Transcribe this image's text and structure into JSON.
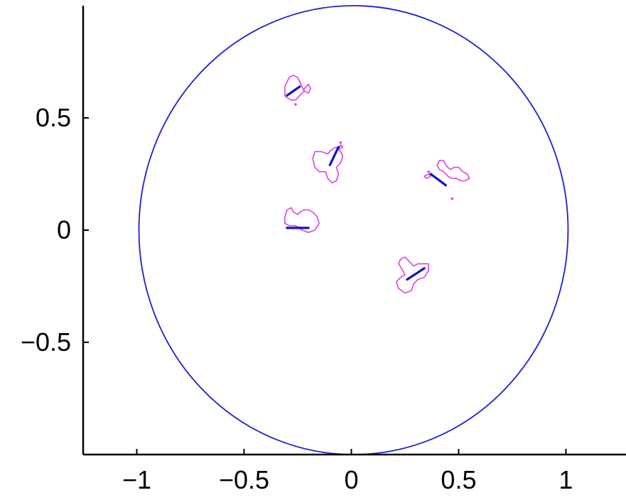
{
  "chart_data": {
    "type": "scatter",
    "title": "",
    "xlabel": "",
    "ylabel": "",
    "xlim": [
      -1.25,
      1.28
    ],
    "ylim": [
      -1.0,
      1.0
    ],
    "xticks": [
      -1,
      -0.5,
      0,
      0.5,
      1
    ],
    "xtick_labels": [
      "−1",
      "−0.5",
      "0",
      "0.5",
      "1"
    ],
    "yticks": [
      -0.5,
      0,
      0.5
    ],
    "ytick_labels": [
      "−0.5",
      "0",
      "0.5"
    ],
    "grid": false,
    "colors": {
      "circle": "#1f1fd0",
      "contour": "#e040e0",
      "segment": "#1010d0",
      "axis": "#000000"
    },
    "unit_circle": {
      "center": [
        0.01,
        0.0
      ],
      "radius": 1.0
    },
    "clusters": [
      {
        "name": "",
        "contour": [
          [
            -0.31,
            0.6
          ],
          [
            -0.31,
            0.64
          ],
          [
            -0.29,
            0.68
          ],
          [
            -0.27,
            0.69
          ],
          [
            -0.25,
            0.68
          ],
          [
            -0.24,
            0.66
          ],
          [
            -0.23,
            0.64
          ],
          [
            -0.22,
            0.62
          ],
          [
            -0.24,
            0.6
          ],
          [
            -0.26,
            0.58
          ],
          [
            -0.28,
            0.58
          ],
          [
            -0.3,
            0.59
          ],
          [
            -0.31,
            0.6
          ]
        ],
        "contour2": [
          [
            -0.22,
            0.63
          ],
          [
            -0.2,
            0.65
          ],
          [
            -0.19,
            0.63
          ],
          [
            -0.2,
            0.61
          ],
          [
            -0.22,
            0.62
          ],
          [
            -0.22,
            0.63
          ]
        ],
        "segment": [
          [
            -0.3,
            0.6
          ],
          [
            -0.24,
            0.64
          ]
        ],
        "dots": [
          [
            -0.26,
            0.56
          ]
        ]
      },
      {
        "name": "",
        "contour": [
          [
            -0.18,
            0.32
          ],
          [
            -0.17,
            0.35
          ],
          [
            -0.14,
            0.35
          ],
          [
            -0.11,
            0.34
          ],
          [
            -0.09,
            0.36
          ],
          [
            -0.07,
            0.37
          ],
          [
            -0.05,
            0.35
          ],
          [
            -0.04,
            0.33
          ],
          [
            -0.05,
            0.3
          ],
          [
            -0.07,
            0.28
          ],
          [
            -0.06,
            0.25
          ],
          [
            -0.07,
            0.22
          ],
          [
            -0.09,
            0.21
          ],
          [
            -0.11,
            0.23
          ],
          [
            -0.12,
            0.26
          ],
          [
            -0.15,
            0.26
          ],
          [
            -0.17,
            0.28
          ],
          [
            -0.18,
            0.32
          ]
        ],
        "contour2": [
          [
            -0.06,
            0.36
          ],
          [
            -0.05,
            0.38
          ],
          [
            -0.04,
            0.37
          ],
          [
            -0.06,
            0.36
          ]
        ],
        "segment": [
          [
            -0.1,
            0.29
          ],
          [
            -0.06,
            0.37
          ]
        ],
        "dots": [
          [
            -0.05,
            0.39
          ]
        ]
      },
      {
        "name": "",
        "contour": [
          [
            0.4,
            0.29
          ],
          [
            0.41,
            0.31
          ],
          [
            0.43,
            0.31
          ],
          [
            0.44,
            0.29
          ],
          [
            0.46,
            0.27
          ],
          [
            0.48,
            0.28
          ],
          [
            0.5,
            0.28
          ],
          [
            0.52,
            0.26
          ],
          [
            0.54,
            0.25
          ],
          [
            0.55,
            0.23
          ],
          [
            0.53,
            0.22
          ],
          [
            0.51,
            0.22
          ],
          [
            0.49,
            0.23
          ],
          [
            0.47,
            0.23
          ],
          [
            0.45,
            0.24
          ],
          [
            0.43,
            0.26
          ],
          [
            0.41,
            0.27
          ],
          [
            0.4,
            0.29
          ]
        ],
        "contour2": [
          [
            0.34,
            0.24
          ],
          [
            0.36,
            0.25
          ],
          [
            0.37,
            0.24
          ],
          [
            0.35,
            0.23
          ],
          [
            0.34,
            0.24
          ]
        ],
        "segment": [
          [
            0.37,
            0.25
          ],
          [
            0.44,
            0.2
          ]
        ],
        "dots": [
          [
            0.47,
            0.14
          ],
          [
            0.36,
            0.26
          ]
        ]
      },
      {
        "name": "",
        "contour": [
          [
            -0.31,
            0.06
          ],
          [
            -0.3,
            0.09
          ],
          [
            -0.28,
            0.1
          ],
          [
            -0.27,
            0.08
          ],
          [
            -0.25,
            0.07
          ],
          [
            -0.24,
            0.08
          ],
          [
            -0.22,
            0.09
          ],
          [
            -0.2,
            0.09
          ],
          [
            -0.18,
            0.08
          ],
          [
            -0.16,
            0.06
          ],
          [
            -0.15,
            0.03
          ],
          [
            -0.17,
            0.0
          ],
          [
            -0.2,
            -0.01
          ],
          [
            -0.23,
            0.0
          ],
          [
            -0.26,
            0.02
          ],
          [
            -0.29,
            0.02
          ],
          [
            -0.31,
            0.03
          ],
          [
            -0.31,
            0.06
          ]
        ],
        "segment": [
          [
            -0.3,
            0.01
          ],
          [
            -0.2,
            0.01
          ]
        ],
        "dots": []
      },
      {
        "name": "",
        "contour": [
          [
            0.22,
            -0.15
          ],
          [
            0.23,
            -0.13
          ],
          [
            0.25,
            -0.12
          ],
          [
            0.27,
            -0.14
          ],
          [
            0.29,
            -0.16
          ],
          [
            0.31,
            -0.15
          ],
          [
            0.33,
            -0.15
          ],
          [
            0.36,
            -0.15
          ],
          [
            0.36,
            -0.18
          ],
          [
            0.34,
            -0.21
          ],
          [
            0.31,
            -0.22
          ],
          [
            0.29,
            -0.24
          ],
          [
            0.28,
            -0.27
          ],
          [
            0.25,
            -0.28
          ],
          [
            0.22,
            -0.26
          ],
          [
            0.21,
            -0.23
          ],
          [
            0.23,
            -0.21
          ],
          [
            0.25,
            -0.2
          ],
          [
            0.24,
            -0.18
          ],
          [
            0.22,
            -0.15
          ]
        ],
        "segment": [
          [
            0.26,
            -0.22
          ],
          [
            0.34,
            -0.17
          ]
        ],
        "dots": []
      }
    ]
  }
}
